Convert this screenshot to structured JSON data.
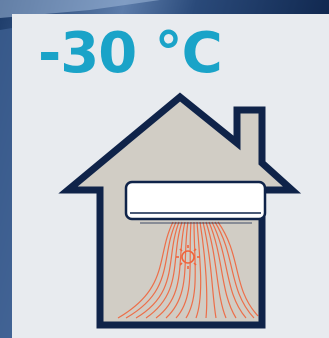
{
  "temperature": {
    "label": "-30 °C",
    "color": "#1aa3c8"
  },
  "illustration": {
    "house_outline_color": "#0f2349",
    "house_fill_color": "#d1cdc5",
    "ac_unit_color": "#ffffff",
    "heat_color": "#f0643c",
    "icons": [
      "house-icon",
      "air-conditioner-icon",
      "sun-icon",
      "heat-waves-icon"
    ]
  },
  "background": {
    "sky_color": "#0b1f3d",
    "panel_color": "#e8ebef"
  }
}
